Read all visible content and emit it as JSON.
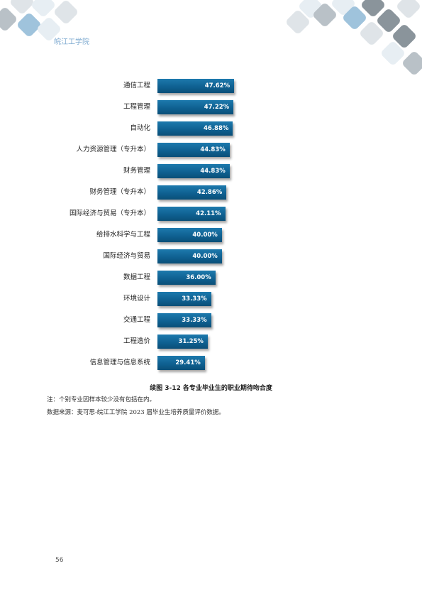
{
  "header": {
    "school": "皖江工学院"
  },
  "chart_data": {
    "type": "bar",
    "categories": [
      "通信工程",
      "工程管理",
      "自动化",
      "人力资源管理（专升本）",
      "财务管理",
      "财务管理（专升本）",
      "国际经济与贸易（专升本）",
      "给排水科学与工程",
      "国际经济与贸易",
      "数据工程",
      "环境设计",
      "交通工程",
      "工程造价",
      "信息管理与信息系统"
    ],
    "values": [
      47.62,
      47.22,
      46.88,
      44.83,
      44.83,
      42.86,
      42.11,
      40.0,
      40.0,
      36.0,
      33.33,
      33.33,
      31.25,
      29.41
    ],
    "value_labels": [
      "47.62%",
      "47.22%",
      "46.88%",
      "44.83%",
      "44.83%",
      "42.86%",
      "42.11%",
      "40.00%",
      "40.00%",
      "36.00%",
      "33.33%",
      "33.33%",
      "31.25%",
      "29.41%"
    ],
    "title": "续图 3-12 各专业毕业生的职业期待吻合度",
    "bar_color": "#0e5f8f"
  },
  "notes": {
    "note": "注：个别专业因样本较少没有包括在内。",
    "source": "数据来源：麦可思-皖江工学院 2023 届毕业生培养质量评价数据。"
  },
  "page_number": "56"
}
